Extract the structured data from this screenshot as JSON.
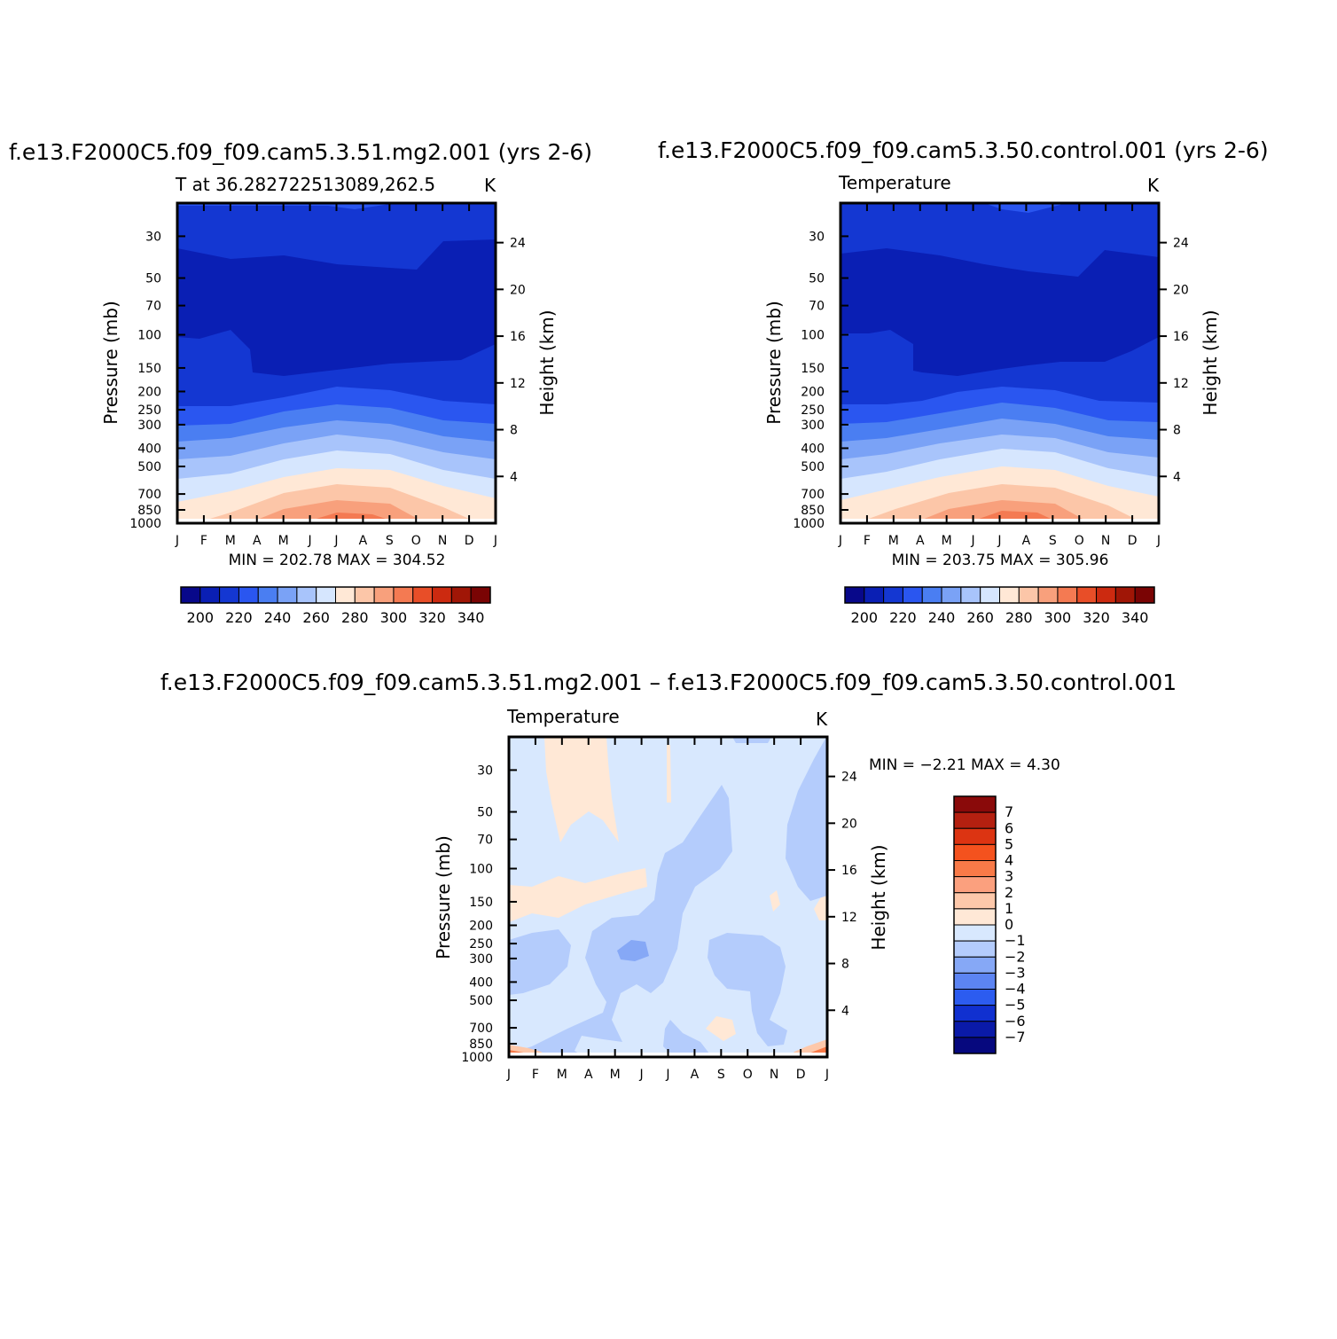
{
  "chart_data": [
    {
      "type": "contour",
      "title": "f.e13.F2000C5.f09_f09.cam5.3.51.mg2.001  (yrs 2-6)",
      "subtitle_left": "T at  36.282722513089,262.5",
      "units": "K",
      "xlabel": "",
      "ylabel": "Pressure  (mb)",
      "ylabel_right": "Height  (km)",
      "x_ticks": [
        "J",
        "F",
        "M",
        "A",
        "M",
        "J",
        "J",
        "A",
        "S",
        "O",
        "N",
        "D",
        "J"
      ],
      "pressure_ticks": [
        "30",
        "50",
        "70",
        "100",
        "150",
        "200",
        "250",
        "300",
        "400",
        "500",
        "700",
        "850",
        "1000"
      ],
      "height_ticks": [
        "24",
        "20",
        "16",
        "12",
        "8",
        "4"
      ],
      "ylim_mb": [
        1000,
        20
      ],
      "min_label": "MIN =  202.78  MAX =  304.52",
      "min": 202.78,
      "max": 304.52,
      "levels": [
        195,
        200,
        205,
        210,
        215,
        220,
        225,
        230,
        235,
        240,
        245,
        250,
        255,
        260,
        265,
        270,
        275,
        280,
        285,
        290,
        295,
        300,
        305,
        310
      ],
      "colorbar_labels": [
        "200",
        "220",
        "240",
        "260",
        "280",
        "300",
        "320",
        "340"
      ],
      "colorbar_colors": [
        "#08088a",
        "#0a1fb4",
        "#1437d2",
        "#2a56f0",
        "#4a7ef2",
        "#7aa2f6",
        "#a8c4fb",
        "#d6e6fe",
        "#ffe8d6",
        "#fcc6a8",
        "#f8a07c",
        "#f47a52",
        "#e84e28",
        "#cc2a10",
        "#a01606",
        "#7a0404"
      ]
    },
    {
      "type": "contour",
      "title": "f.e13.F2000C5.f09_f09.cam5.3.50.control.001  (yrs 2-6)",
      "subtitle_left": "Temperature",
      "units": "K",
      "xlabel": "",
      "ylabel": "Pressure  (mb)",
      "ylabel_right": "Height  (km)",
      "x_ticks": [
        "J",
        "F",
        "M",
        "A",
        "M",
        "J",
        "J",
        "A",
        "S",
        "O",
        "N",
        "D",
        "J"
      ],
      "pressure_ticks": [
        "30",
        "50",
        "70",
        "100",
        "150",
        "200",
        "250",
        "300",
        "400",
        "500",
        "700",
        "850",
        "1000"
      ],
      "height_ticks": [
        "24",
        "20",
        "16",
        "12",
        "8",
        "4"
      ],
      "ylim_mb": [
        1000,
        20
      ],
      "min_label": "MIN =  203.75  MAX =  305.96",
      "min": 203.75,
      "max": 305.96,
      "colorbar_labels": [
        "200",
        "220",
        "240",
        "260",
        "280",
        "300",
        "320",
        "340"
      ],
      "colorbar_colors": [
        "#08088a",
        "#0a1fb4",
        "#1437d2",
        "#2a56f0",
        "#4a7ef2",
        "#7aa2f6",
        "#a8c4fb",
        "#d6e6fe",
        "#ffe8d6",
        "#fcc6a8",
        "#f8a07c",
        "#f47a52",
        "#e84e28",
        "#cc2a10",
        "#a01606",
        "#7a0404"
      ]
    },
    {
      "type": "contour",
      "title": "f.e13.F2000C5.f09_f09.cam5.3.51.mg2.001  –  f.e13.F2000C5.f09_f09.cam5.3.50.control.001",
      "subtitle_left": "Temperature",
      "units": "K",
      "xlabel": "",
      "ylabel": "Pressure  (mb)",
      "ylabel_right": "Height  (km)",
      "x_ticks": [
        "J",
        "F",
        "M",
        "A",
        "M",
        "J",
        "J",
        "A",
        "S",
        "O",
        "N",
        "D",
        "J"
      ],
      "pressure_ticks": [
        "30",
        "50",
        "70",
        "100",
        "150",
        "200",
        "250",
        "300",
        "400",
        "500",
        "700",
        "850",
        "1000"
      ],
      "height_ticks": [
        "24",
        "20",
        "16",
        "12",
        "8",
        "4"
      ],
      "ylim_mb": [
        1000,
        20
      ],
      "min_label": "MIN =   −2.21  MAX =     4.30",
      "min": -2.21,
      "max": 4.3,
      "colorbar_labels": [
        "7",
        "6",
        "5",
        "4",
        "3",
        "2",
        "1",
        "0",
        "−1",
        "−2",
        "−3",
        "−4",
        "−5",
        "−6",
        "−7"
      ],
      "colorbar_colors_top_down": [
        "#8a0a0a",
        "#b42010",
        "#dc3412",
        "#f4521e",
        "#f87a48",
        "#fba07e",
        "#fdc8aa",
        "#ffe8d6",
        "#d8e8fe",
        "#b4ccfc",
        "#86a8f6",
        "#5c84f2",
        "#2c5cf0",
        "#1030d0",
        "#0a1aa8",
        "#06087e"
      ]
    }
  ]
}
